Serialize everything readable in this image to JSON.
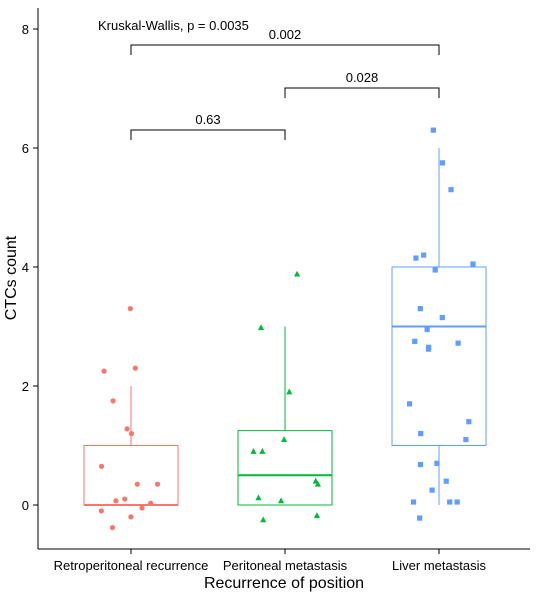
{
  "chart_data": {
    "type": "boxplot",
    "title": "",
    "xlabel": "Recurrence of position",
    "ylabel": "CTCs count",
    "ylim": [
      -0.75,
      8.4
    ],
    "yticks": [
      0,
      2,
      4,
      6,
      8
    ],
    "grid": false,
    "categories": [
      "Retroperitoneal recurrence",
      "Peritoneal metastasis",
      "Liver metastasis"
    ],
    "colors": [
      "#F8766D",
      "#00BA38",
      "#619CFF"
    ],
    "markers": [
      "circle",
      "triangle",
      "square"
    ],
    "boxes": [
      {
        "category": "Retroperitoneal recurrence",
        "min": 0,
        "q1": 0,
        "median": 0,
        "q3": 1,
        "max": 2
      },
      {
        "category": "Peritoneal metastasis",
        "min": 0,
        "q1": 0,
        "median": 0.5,
        "q3": 1.25,
        "max": 3
      },
      {
        "category": "Liver metastasis",
        "min": 0,
        "q1": 1,
        "median": 3,
        "q3": 4,
        "max": 6
      }
    ],
    "points": [
      [
        3.3,
        2.3,
        2.25,
        1.75,
        1.28,
        1.2,
        0.65,
        0.35,
        0.35,
        0.1,
        0.07,
        0.03,
        -0.05,
        -0.1,
        -0.2,
        -0.38
      ],
      [
        3.88,
        2.98,
        1.9,
        1.1,
        0.9,
        0.9,
        0.4,
        0.35,
        0.12,
        0.07,
        -0.18,
        -0.25
      ],
      [
        6.3,
        5.75,
        5.3,
        4.2,
        4.15,
        4.05,
        3.95,
        3.3,
        3.15,
        2.95,
        2.75,
        2.72,
        2.65,
        2.62,
        1.7,
        1.4,
        1.2,
        1.1,
        0.7,
        0.68,
        0.4,
        0.25,
        0.05,
        0.05,
        0.05,
        -0.22
      ]
    ],
    "test_label": "Kruskal-Wallis, p = 0.0035",
    "comparisons": [
      {
        "from": 0,
        "to": 1,
        "label": "0.63"
      },
      {
        "from": 1,
        "to": 2,
        "label": "0.028"
      },
      {
        "from": 0,
        "to": 2,
        "label": "0.002"
      }
    ]
  }
}
